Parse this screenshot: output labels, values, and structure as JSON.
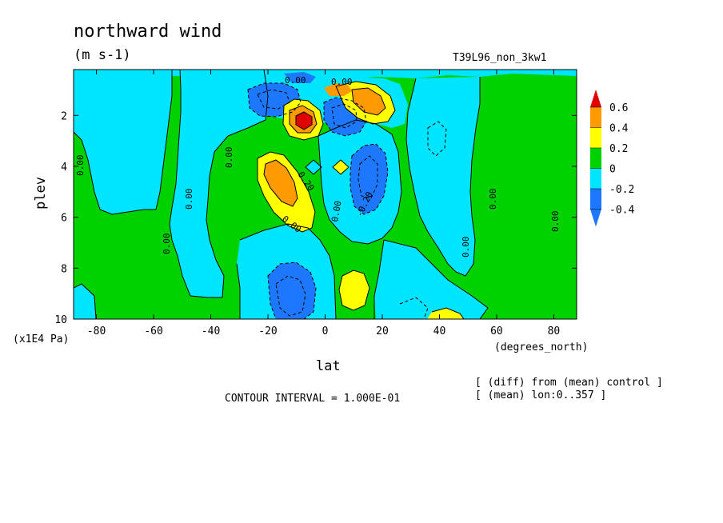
{
  "chart_data": {
    "type": "heatmap",
    "title": "northward wind",
    "subtitle": "(m s-1)",
    "run_label": "T39L96_non_3kw1",
    "xlabel": "lat",
    "ylabel": "plev",
    "x_units": "(degrees_north)",
    "y_units": "(x1E4 Pa)",
    "xlim": [
      -88,
      88
    ],
    "ylim": [
      10,
      0.2
    ],
    "x_ticks": [
      "-80",
      "-60",
      "-40",
      "-20",
      "0",
      "20",
      "40",
      "60",
      "80"
    ],
    "y_ticks": [
      "2",
      "4",
      "6",
      "8",
      "10"
    ],
    "contour_interval": "CONTOUR INTERVAL = 1.000E-01",
    "notes": [
      "[ (diff) from (mean) control ]",
      "[ (mean) lon:0..357 ]"
    ],
    "colorbar": {
      "labels": [
        "0.6",
        "0.4",
        "0.2",
        "0",
        "-0.2",
        "-0.4"
      ],
      "bins": [
        {
          "range": "< -0.4",
          "color": "#1e78ff"
        },
        {
          "range": "-0.4 to -0.2",
          "color": "#1e78ff"
        },
        {
          "range": "-0.2 to 0",
          "color": "#00e5ff"
        },
        {
          "range": "0 to 0.2",
          "color": "#00d200"
        },
        {
          "range": "0.2 to 0.4",
          "color": "#ffff00"
        },
        {
          "range": "0.4 to 0.6",
          "color": "#ff9a00"
        },
        {
          "range": "> 0.6",
          "color": "#e10000"
        }
      ]
    },
    "contour_labels": [
      "0.00",
      "0.00",
      "0.00",
      "0.00",
      "0.00",
      "0.00",
      "0.00",
      "0.00",
      "0.00",
      "0.00",
      "0.00",
      "0.20",
      "-0.20"
    ],
    "features": [
      {
        "lat": -12,
        "plev": 4.4,
        "value": 0.45,
        "sign": "positive"
      },
      {
        "lat": -8,
        "plev": 2.3,
        "value": 0.65,
        "sign": "positive"
      },
      {
        "lat": 18,
        "plev": 1.5,
        "value": 0.55,
        "sign": "positive"
      },
      {
        "lat": 10,
        "plev": 1.0,
        "value": 0.8,
        "sign": "positive"
      },
      {
        "lat": 10,
        "plev": 8.6,
        "value": 0.3,
        "sign": "positive"
      },
      {
        "lat": 42,
        "plev": 9.8,
        "value": 0.3,
        "sign": "positive"
      },
      {
        "lat": -6,
        "plev": 9.0,
        "value": -0.45,
        "sign": "negative"
      },
      {
        "lat": 18,
        "plev": 4.7,
        "value": -0.35,
        "sign": "negative"
      },
      {
        "lat": 8,
        "plev": 2.3,
        "value": -0.5,
        "sign": "negative"
      },
      {
        "lat": -12,
        "plev": 1.7,
        "value": -0.45,
        "sign": "negative"
      },
      {
        "lat": -5,
        "plev": 0.7,
        "value": -0.3,
        "sign": "negative"
      },
      {
        "lat": 30,
        "plev": 9.3,
        "value": -0.12,
        "sign": "negative"
      }
    ]
  }
}
